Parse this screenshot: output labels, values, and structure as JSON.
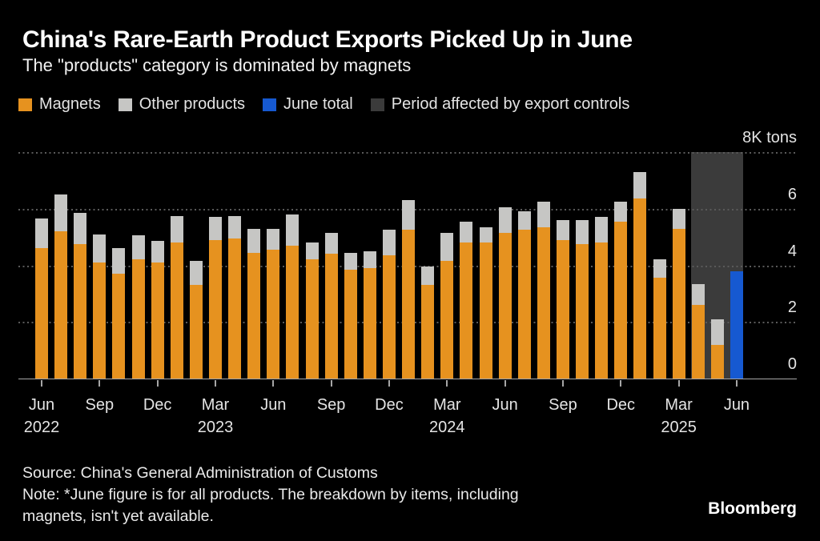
{
  "colors": {
    "magnets": "#E6921F",
    "other_products": "#C6C6C4",
    "june_total": "#1659D1",
    "control_band": "#3B3B3B",
    "grid": "#5A5A5A",
    "axis": "#A6A6A6",
    "background": "#000000"
  },
  "legend": {
    "items": [
      {
        "label": "Magnets",
        "color_key": "magnets"
      },
      {
        "label": "Other products",
        "color_key": "other_products"
      },
      {
        "label": "June total",
        "color_key": "june_total"
      },
      {
        "label": "Period affected by export controls",
        "color_key": "control_band"
      }
    ]
  },
  "chart_data": {
    "type": "bar",
    "stacked": true,
    "title": "China's Rare-Earth Product Exports Picked Up in June",
    "subtitle": "The \"products\" category is dominated by magnets",
    "unit": "K tons",
    "xlabel": "",
    "ylabel": "",
    "ylim": [
      0,
      8
    ],
    "grid": "dotted-horizontal",
    "legend_position": "top",
    "x_tick_every": 3,
    "yticks": [
      {
        "value": 0,
        "label": "0"
      },
      {
        "value": 2,
        "label": "2"
      },
      {
        "value": 4,
        "label": "4"
      },
      {
        "value": 6,
        "label": "6"
      },
      {
        "value": 8,
        "label": "8K tons"
      }
    ],
    "series_names": [
      "Magnets",
      "Other products",
      "June total"
    ],
    "bars": [
      {
        "month": "Jun",
        "year": "2022",
        "magnets": 4.6,
        "other": 1.05,
        "tick": "Jun",
        "tick_year": "2022"
      },
      {
        "month": "Jul",
        "year": "2022",
        "magnets": 5.2,
        "other": 1.3
      },
      {
        "month": "Aug",
        "year": "2022",
        "magnets": 4.75,
        "other": 1.1
      },
      {
        "month": "Sep",
        "year": "2022",
        "magnets": 4.1,
        "other": 1.0,
        "tick": "Sep"
      },
      {
        "month": "Oct",
        "year": "2022",
        "magnets": 3.7,
        "other": 0.9
      },
      {
        "month": "Nov",
        "year": "2022",
        "magnets": 4.2,
        "other": 0.85
      },
      {
        "month": "Dec",
        "year": "2022",
        "magnets": 4.1,
        "other": 0.75,
        "tick": "Dec"
      },
      {
        "month": "Jan",
        "year": "2023",
        "magnets": 4.8,
        "other": 0.95
      },
      {
        "month": "Feb",
        "year": "2023",
        "magnets": 3.3,
        "other": 0.85
      },
      {
        "month": "Mar",
        "year": "2023",
        "magnets": 4.9,
        "other": 0.8,
        "tick": "Mar",
        "tick_year": "2023"
      },
      {
        "month": "Apr",
        "year": "2023",
        "magnets": 4.95,
        "other": 0.8
      },
      {
        "month": "May",
        "year": "2023",
        "magnets": 4.45,
        "other": 0.85
      },
      {
        "month": "Jun",
        "year": "2023",
        "magnets": 4.55,
        "other": 0.75,
        "tick": "Jun"
      },
      {
        "month": "Jul",
        "year": "2023",
        "magnets": 4.7,
        "other": 1.1
      },
      {
        "month": "Aug",
        "year": "2023",
        "magnets": 4.2,
        "other": 0.6
      },
      {
        "month": "Sep",
        "year": "2023",
        "magnets": 4.4,
        "other": 0.75,
        "tick": "Sep"
      },
      {
        "month": "Oct",
        "year": "2023",
        "magnets": 3.85,
        "other": 0.6
      },
      {
        "month": "Nov",
        "year": "2023",
        "magnets": 3.9,
        "other": 0.6
      },
      {
        "month": "Dec",
        "year": "2023",
        "magnets": 4.35,
        "other": 0.9,
        "tick": "Dec"
      },
      {
        "month": "Jan",
        "year": "2024",
        "magnets": 5.25,
        "other": 1.05
      },
      {
        "month": "Feb",
        "year": "2024",
        "magnets": 3.3,
        "other": 0.65
      },
      {
        "month": "Mar",
        "year": "2024",
        "magnets": 4.15,
        "other": 1.0,
        "tick": "Mar",
        "tick_year": "2024"
      },
      {
        "month": "Apr",
        "year": "2024",
        "magnets": 4.8,
        "other": 0.75
      },
      {
        "month": "May",
        "year": "2024",
        "magnets": 4.8,
        "other": 0.55
      },
      {
        "month": "Jun",
        "year": "2024",
        "magnets": 5.15,
        "other": 0.9,
        "tick": "Jun"
      },
      {
        "month": "Jul",
        "year": "2024",
        "magnets": 5.25,
        "other": 0.65
      },
      {
        "month": "Aug",
        "year": "2024",
        "magnets": 5.35,
        "other": 0.9
      },
      {
        "month": "Sep",
        "year": "2024",
        "magnets": 4.9,
        "other": 0.7,
        "tick": "Sep"
      },
      {
        "month": "Oct",
        "year": "2024",
        "magnets": 4.75,
        "other": 0.85
      },
      {
        "month": "Nov",
        "year": "2024",
        "magnets": 4.8,
        "other": 0.9
      },
      {
        "month": "Dec",
        "year": "2024",
        "magnets": 5.55,
        "other": 0.7,
        "tick": "Dec"
      },
      {
        "month": "Jan",
        "year": "2025",
        "magnets": 6.35,
        "other": 0.95
      },
      {
        "month": "Feb",
        "year": "2025",
        "magnets": 3.55,
        "other": 0.65
      },
      {
        "month": "Mar",
        "year": "2025",
        "magnets": 5.3,
        "other": 0.7,
        "tick": "Mar",
        "tick_year": "2025"
      },
      {
        "month": "Apr",
        "year": "2025",
        "magnets": 2.6,
        "other": 0.75
      },
      {
        "month": "May",
        "year": "2025",
        "magnets": 1.2,
        "other": 0.9
      },
      {
        "month": "Jun",
        "year": "2025",
        "june_total": 3.8,
        "tick": "Jun"
      }
    ],
    "export_controls_band": {
      "start_index": 34,
      "end_index": 36,
      "label": "Period affected by export controls"
    }
  },
  "footer": {
    "source": "Source: China's General Administration of Customs",
    "note_lines": [
      "Note: *June figure is for all products. The breakdown by items, including",
      "magnets, isn't yet available."
    ],
    "brand": "Bloomberg"
  }
}
